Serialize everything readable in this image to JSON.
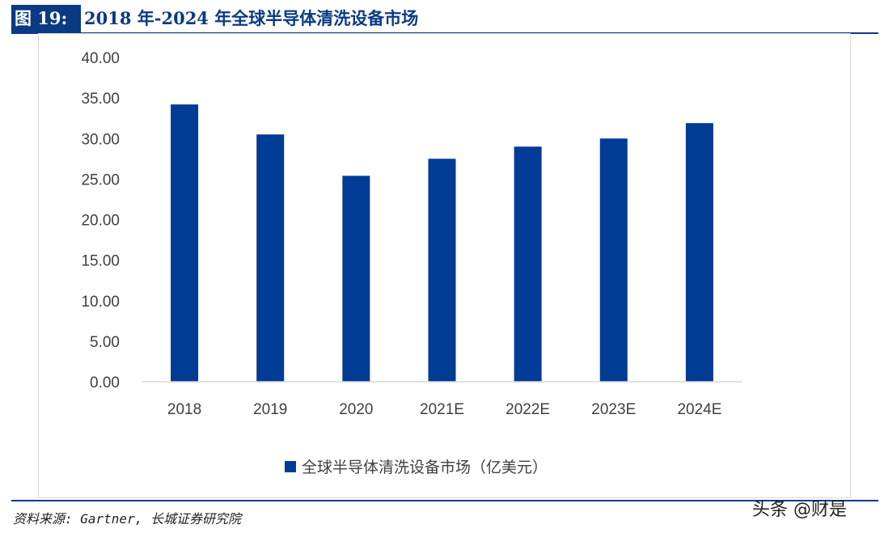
{
  "figure": {
    "label": "图 19:",
    "title": "2018 年-2024 年全球半导体清洗设备市场"
  },
  "source": "资料来源: Gartner, 长城证券研究院",
  "watermark": "头条 @财是",
  "colors": {
    "bar": "#003B96",
    "header": "#0b3a84",
    "axis": "#d9d9d9",
    "text": "#404040"
  },
  "chart_data": {
    "type": "bar",
    "categories": [
      "2018",
      "2019",
      "2020",
      "2021E",
      "2022E",
      "2023E",
      "2024E"
    ],
    "series": [
      {
        "name": "全球半导体清洗设备市场（亿美元）",
        "values": [
          34.2,
          30.5,
          25.4,
          27.5,
          29.0,
          30.0,
          31.9
        ]
      }
    ],
    "ylim": [
      0,
      40
    ],
    "yticks": [
      "0.00",
      "5.00",
      "10.00",
      "15.00",
      "20.00",
      "25.00",
      "30.00",
      "35.00",
      "40.00"
    ],
    "grid": false,
    "legend": "bottom-center"
  }
}
